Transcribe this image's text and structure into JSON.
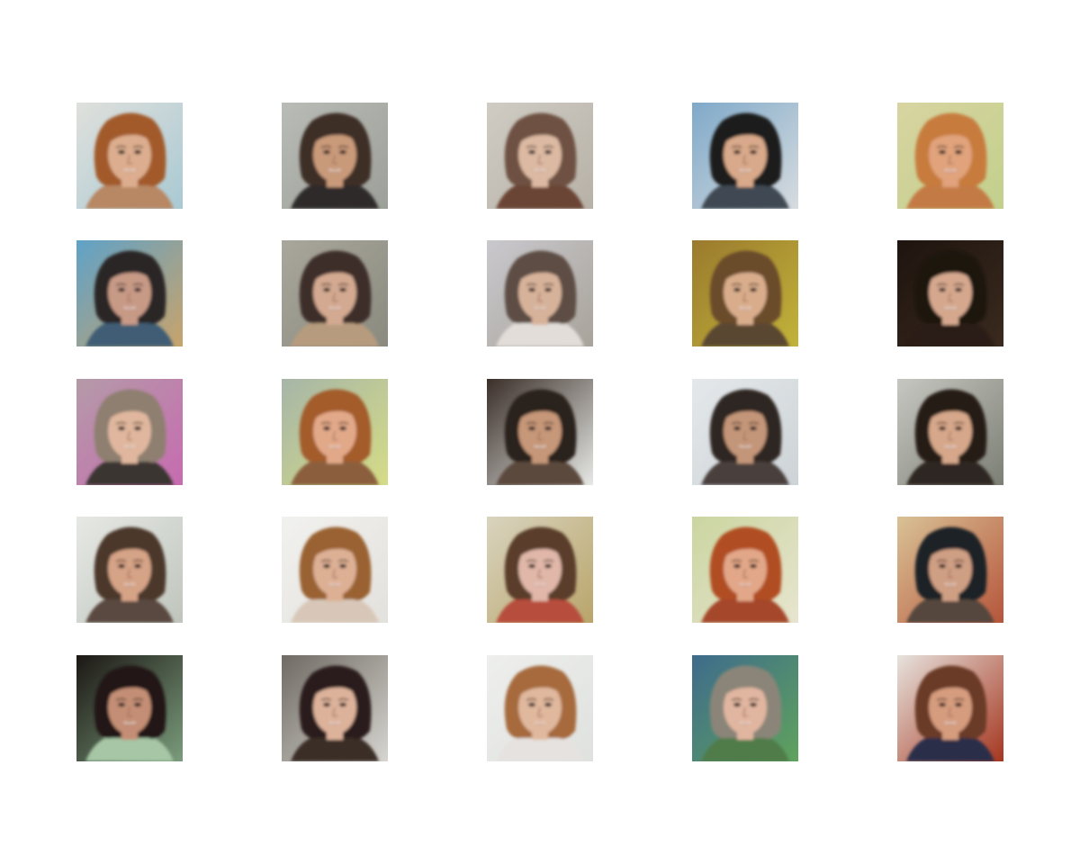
{
  "figure": {
    "rows": 5,
    "cols": 5,
    "samples": [
      {
        "bg": "#dfe0dc",
        "bg2": "#a9c9d3",
        "hair": "#a25a2c",
        "skin": "#dcae8f",
        "mouth": "#9a4f45",
        "shirt": "#b88763"
      },
      {
        "bg": "#b9bbb6",
        "bg2": "#9ca098",
        "hair": "#3d2f27",
        "skin": "#c99a7a",
        "mouth": "#7d4a3e",
        "shirt": "#2e2c2a"
      },
      {
        "bg": "#cfccc4",
        "bg2": "#b7b1a7",
        "hair": "#6e5142",
        "skin": "#dcb9a2",
        "mouth": "#8c4a45",
        "shirt": "#6a4534"
      },
      {
        "bg": "#7fa9c9",
        "bg2": "#d7dcdf",
        "hair": "#1c1b1b",
        "skin": "#d8a98a",
        "mouth": "#8b4f43",
        "shirt": "#3f4a52"
      },
      {
        "bg": "#d8d4a1",
        "bg2": "#c2d08c",
        "hair": "#c77b3c",
        "skin": "#e0a37b",
        "mouth": "#7c2f27",
        "shirt": "#c47a45"
      },
      {
        "bg": "#5fa2c8",
        "bg2": "#c8a36b",
        "hair": "#2b2527",
        "skin": "#c79a86",
        "mouth": "#8e4b49",
        "shirt": "#3f5d75"
      },
      {
        "bg": "#a9a79c",
        "bg2": "#8b8a7f",
        "hair": "#3c2e2a",
        "skin": "#d3a991",
        "mouth": "#8a4d45",
        "shirt": "#b79b7e"
      },
      {
        "bg": "#c9c8cd",
        "bg2": "#a8a39a",
        "hair": "#5d4e45",
        "skin": "#d7b29a",
        "mouth": "#8a5a4e",
        "shirt": "#e2ddd9"
      },
      {
        "bg": "#9a7a2d",
        "bg2": "#c2b33a",
        "hair": "#6b4b2c",
        "skin": "#d9ad8c",
        "mouth": "#94544b",
        "shirt": "#5a4630"
      },
      {
        "bg": "#1e140f",
        "bg2": "#3a2a1e",
        "hair": "#1b120d",
        "skin": "#d5a88e",
        "mouth": "#864940",
        "shirt": "#2a1d16"
      },
      {
        "bg": "#b49aa8",
        "bg2": "#c76bb0",
        "hair": "#8e7f70",
        "skin": "#e0b79e",
        "mouth": "#955048",
        "shirt": "#3a3433"
      },
      {
        "bg": "#a6b5a8",
        "bg2": "#d5dc86",
        "hair": "#a35c2c",
        "skin": "#e2a989",
        "mouth": "#8a3a33",
        "shirt": "#8b5f3c"
      },
      {
        "bg": "#3a2e28",
        "bg2": "#e7e9e6",
        "hair": "#2a211d",
        "skin": "#c69778",
        "mouth": "#7f4237",
        "shirt": "#5b4a3e"
      },
      {
        "bg": "#e4e8eb",
        "bg2": "#cdd3d6",
        "hair": "#2e2622",
        "skin": "#c49679",
        "mouth": "#7a4439",
        "shirt": "#48403c"
      },
      {
        "bg": "#c6c7c1",
        "bg2": "#7c7f74",
        "hair": "#281d19",
        "skin": "#d6a78a",
        "mouth": "#8a4a40",
        "shirt": "#2e2522"
      },
      {
        "bg": "#e6e8e4",
        "bg2": "#bfc5bd",
        "hair": "#4c372c",
        "skin": "#d5a386",
        "mouth": "#84463c",
        "shirt": "#5a4a3f"
      },
      {
        "bg": "#f1f1ef",
        "bg2": "#e3e1dc",
        "hair": "#9a6233",
        "skin": "#ddb094",
        "mouth": "#8e4f45",
        "shirt": "#d8c7b8"
      },
      {
        "bg": "#d9d4bf",
        "bg2": "#b9a56a",
        "hair": "#5a3d2a",
        "skin": "#e0b7a9",
        "mouth": "#9c3f48",
        "shirt": "#b74d3c"
      },
      {
        "bg": "#cbd5a0",
        "bg2": "#e7e5cf",
        "hair": "#b14e24",
        "skin": "#e2a788",
        "mouth": "#7b2e27",
        "shirt": "#a5472a"
      },
      {
        "bg": "#d9c296",
        "bg2": "#b6553b",
        "hair": "#1f2326",
        "skin": "#cf9f84",
        "mouth": "#7b4437",
        "shirt": "#54473c"
      },
      {
        "bg": "#1c1714",
        "bg2": "#7a9c7c",
        "hair": "#201918",
        "skin": "#c38e74",
        "mouth": "#7c3a33",
        "shirt": "#a6c6a5"
      },
      {
        "bg": "#6f6a63",
        "bg2": "#d7d5d0",
        "hair": "#2a1f1a",
        "skin": "#ddb29b",
        "mouth": "#8b4c43",
        "shirt": "#3a2e28"
      },
      {
        "bg": "#eeefed",
        "bg2": "#dfe1df",
        "hair": "#a66a3c",
        "skin": "#e0b89d",
        "mouth": "#94574c",
        "shirt": "#e6e2df"
      },
      {
        "bg": "#3d6b8c",
        "bg2": "#5fa35d",
        "hair": "#8a8578",
        "skin": "#e1b6a0",
        "mouth": "#8b4c47",
        "shirt": "#4f7b49"
      },
      {
        "bg": "#e7e3de",
        "bg2": "#a5361f",
        "hair": "#6a3a26",
        "skin": "#d59c7e",
        "mouth": "#7f3a30",
        "shirt": "#2b2e49"
      }
    ]
  }
}
